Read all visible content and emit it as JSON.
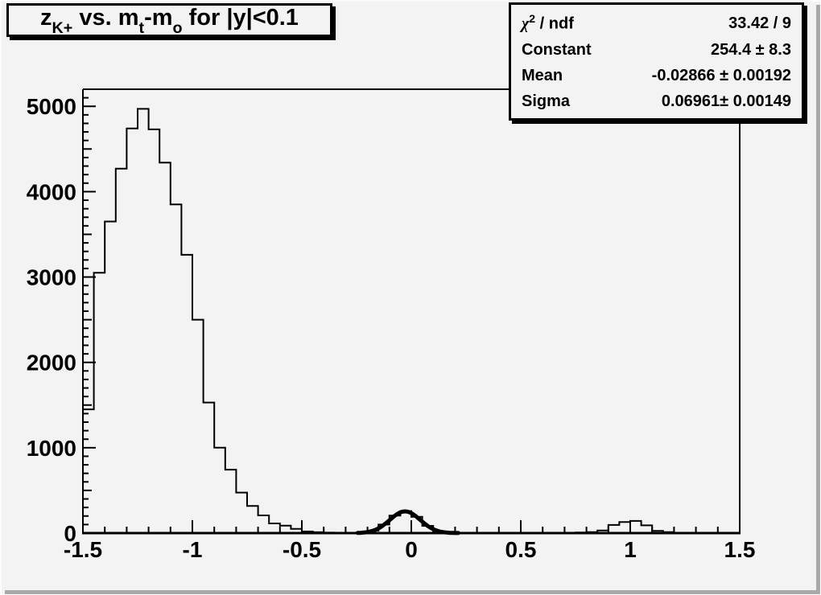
{
  "title": {
    "p1": "z",
    "s1": "K+",
    "p2": " vs. m",
    "s2": "t",
    "p3": "-m",
    "s3": "o",
    "p4": " for |y|<0.1"
  },
  "stats": {
    "row1": {
      "label_chi": "χ",
      "label_exp": "2",
      "label_rest": " / ndf",
      "value": "33.42 / 9"
    },
    "row2": {
      "label": "Constant",
      "value": "254.4 ± 8.3"
    },
    "row3": {
      "label": "Mean",
      "value": "-0.02866 ± 0.00192"
    },
    "row4": {
      "label": "Sigma",
      "value": "0.06961± 0.00149"
    }
  },
  "colors": {
    "canvas_bg": "#f3f3f3",
    "line": "#000000",
    "shadow": "#a9a9a9"
  },
  "chart_data": {
    "type": "bar",
    "style": "step-outline-histogram",
    "title": "z_{K+} vs. m_{t}-m_{o} for |y|<0.1",
    "xlabel": "",
    "ylabel": "",
    "xlim": [
      -1.5,
      1.5
    ],
    "ylim": [
      0,
      5200
    ],
    "grid": false,
    "bin_start": -1.5,
    "bin_width": 0.05,
    "values": [
      1450,
      3050,
      3650,
      4270,
      4740,
      4970,
      4730,
      4340,
      3850,
      3260,
      2500,
      1530,
      1000,
      743,
      475,
      318,
      207,
      113,
      88,
      50,
      19,
      10,
      6,
      4,
      4,
      6,
      28,
      100,
      205,
      258,
      190,
      85,
      24,
      6,
      2,
      1,
      1,
      1,
      1,
      1,
      1,
      1,
      2,
      3,
      5,
      8,
      12,
      30,
      95,
      130,
      142,
      90,
      25,
      12,
      4,
      2,
      0,
      0,
      0,
      0
    ],
    "x_ticks_major": [
      -1.5,
      -1,
      -0.5,
      0,
      0.5,
      1,
      1.5
    ],
    "x_tick_labels": [
      "-1.5",
      "-1",
      "-0.5",
      "0",
      "0.5",
      "1",
      "1.5"
    ],
    "x_minor_step": 0.1,
    "y_ticks_major": [
      0,
      1000,
      2000,
      3000,
      4000,
      5000
    ],
    "y_tick_labels": [
      "0",
      "1000",
      "2000",
      "3000",
      "4000",
      "5000"
    ],
    "y_minor_step": 100,
    "y_medium_step": 500,
    "fit": {
      "type": "gaussian",
      "constant": 254.4,
      "mean": -0.02866,
      "sigma": 0.06961,
      "range": [
        -0.245,
        0.215
      ]
    },
    "legend_position": "none",
    "stats_box": {
      "chi2_ndf": "33.42 / 9",
      "constant": "254.4 ± 8.3",
      "mean": "-0.02866 ± 0.00192",
      "sigma": "0.06961± 0.00149"
    }
  }
}
